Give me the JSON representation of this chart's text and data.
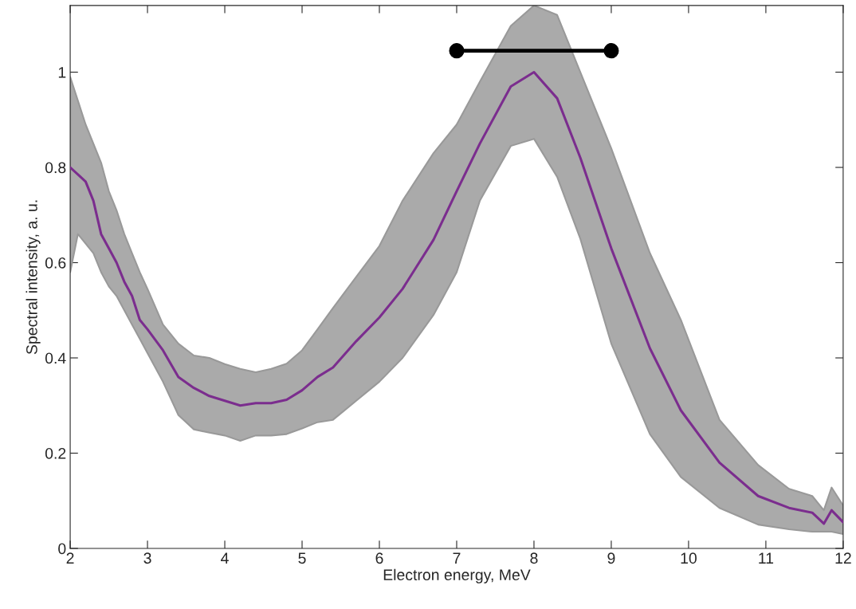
{
  "chart_data": {
    "type": "line",
    "xlabel": "Electron energy, MeV",
    "ylabel": "Spectral intensity, a. u.",
    "xlim": [
      2,
      12
    ],
    "ylim": [
      0,
      1.14
    ],
    "xticks": [
      2,
      3,
      4,
      5,
      6,
      7,
      8,
      9,
      10,
      11,
      12
    ],
    "yticks": [
      0,
      0.2,
      0.4,
      0.6,
      0.8,
      1
    ],
    "grid": false,
    "series": [
      {
        "color": "#7b2d8e",
        "x": [
          2.0,
          2.1,
          2.2,
          2.3,
          2.4,
          2.5,
          2.6,
          2.7,
          2.8,
          2.9,
          3.0,
          3.2,
          3.4,
          3.6,
          3.8,
          4.0,
          4.2,
          4.4,
          4.6,
          4.8,
          5.0,
          5.2,
          5.4,
          5.7,
          6.0,
          6.3,
          6.7,
          7.0,
          7.3,
          7.7,
          8.0,
          8.3,
          8.6,
          9.0,
          9.5,
          9.9,
          10.4,
          10.9,
          11.3,
          11.6,
          11.75,
          11.85,
          12.0
        ],
        "values": [
          0.8,
          0.785,
          0.77,
          0.73,
          0.66,
          0.63,
          0.6,
          0.56,
          0.53,
          0.48,
          0.46,
          0.416,
          0.36,
          0.337,
          0.32,
          0.31,
          0.3,
          0.305,
          0.305,
          0.312,
          0.332,
          0.36,
          0.38,
          0.435,
          0.485,
          0.545,
          0.648,
          0.75,
          0.85,
          0.97,
          1.0,
          0.945,
          0.82,
          0.63,
          0.42,
          0.29,
          0.18,
          0.11,
          0.085,
          0.075,
          0.052,
          0.08,
          0.055
        ],
        "upper": [
          0.99,
          0.94,
          0.89,
          0.85,
          0.81,
          0.75,
          0.71,
          0.66,
          0.62,
          0.58,
          0.545,
          0.47,
          0.43,
          0.405,
          0.4,
          0.387,
          0.377,
          0.37,
          0.377,
          0.388,
          0.416,
          0.46,
          0.505,
          0.57,
          0.635,
          0.73,
          0.83,
          0.89,
          0.98,
          1.097,
          1.14,
          1.12,
          1.0,
          0.84,
          0.62,
          0.48,
          0.27,
          0.175,
          0.125,
          0.11,
          0.08,
          0.128,
          0.09
        ],
        "lower": [
          0.58,
          0.66,
          0.64,
          0.62,
          0.58,
          0.55,
          0.53,
          0.5,
          0.47,
          0.44,
          0.41,
          0.35,
          0.28,
          0.25,
          0.243,
          0.237,
          0.226,
          0.237,
          0.237,
          0.24,
          0.252,
          0.265,
          0.27,
          0.31,
          0.35,
          0.4,
          0.49,
          0.58,
          0.73,
          0.845,
          0.86,
          0.78,
          0.65,
          0.43,
          0.24,
          0.15,
          0.085,
          0.05,
          0.04,
          0.035,
          0.035,
          0.035,
          0.03
        ]
      },
      {
        "color": "#000000",
        "marker": "circle",
        "x": [
          7,
          9
        ],
        "values": [
          1.045,
          1.045
        ]
      }
    ]
  }
}
